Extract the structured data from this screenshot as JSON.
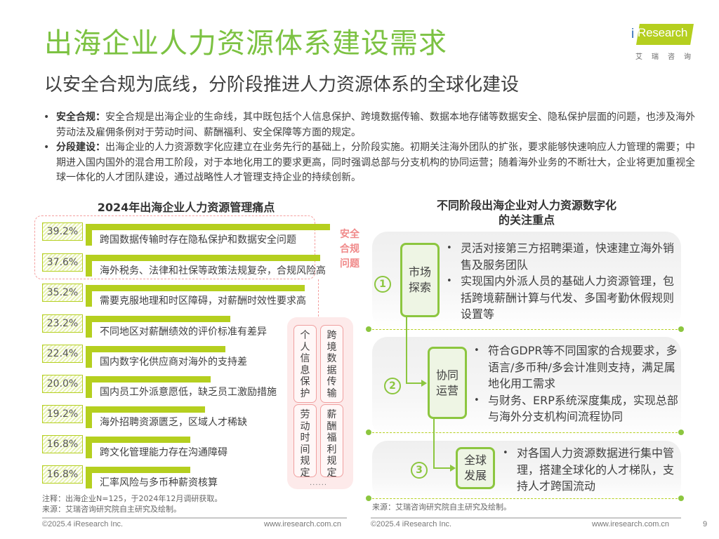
{
  "header": {
    "title": "出海企业人力资源体系建设需求",
    "subtitle": "以安全合规为底线，分阶段推进人力资源体系的全球化建设",
    "logo": {
      "brand": "Research",
      "brand_prefix": "i",
      "cn": "艾瑞咨询"
    }
  },
  "bullets": [
    {
      "bold": "安全合规：",
      "text": "安全合规是出海企业的生命线，其中既包括个人信息保护、跨境数据传输、数据本地存储等数据安全、隐私保护层面的问题，也涉及海外劳动法及雇佣条例对于劳动时间、薪酬福利、安全保障等方面的规定。"
    },
    {
      "bold": "分段建设：",
      "text": "出海企业的人力资源数字化应建立在业务先行的基础上，分阶段实施。初期关注海外团队的扩张，要求能够快速响应人力管理的需要；中期进入国内国外的混合用工阶段，对于本地化用工的要求更高，同时强调总部与分支机构的协同运营；随着海外业务的不断壮大，企业将更加重视全球一体化的人才团队建设，通过战略性人才管理支持企业的持续创新。"
    }
  ],
  "chart_data": {
    "type": "bar",
    "title": "2024年出海企业人力资源管理痛点",
    "orientation": "horizontal",
    "categories": [
      "跨国数据传输时存在隐私保护和数据安全问题",
      "海外税务、法律和社保等政策法规复杂，合规风险高",
      "需要克服地理和时区障碍，对薪酬时效性要求高",
      "不同地区对薪酬绩效的评价标准有差异",
      "国内数字化供应商对海外的支持差",
      "国内员工外派意愿低，缺乏员工激励措施",
      "海外招聘资源匮乏，区域人才稀缺",
      "跨文化管理能力存在沟通障碍",
      "汇率风险与多币种薪资核算"
    ],
    "values": [
      39.2,
      37.6,
      35.2,
      23.2,
      22.4,
      20.0,
      19.2,
      16.8,
      16.8
    ],
    "value_labels": [
      "39.2%",
      "37.6%",
      "35.2%",
      "23.2%",
      "22.4%",
      "20.0%",
      "19.2%",
      "16.8%",
      "16.8%"
    ],
    "unit": "%",
    "xlabel": "",
    "ylabel": "",
    "annotation": "安全合规问题（前两项）",
    "colors": {
      "bar": "#b5cf1f",
      "highlight": "#f08a8a"
    }
  },
  "left_panel": {
    "title": "2024年出海企业人力资源管理痛点",
    "compliance_label": "安全合规问题",
    "tags": [
      "个人信息保护",
      "跨境数据传输",
      "劳动时间规定",
      "薪酬福利规定"
    ],
    "tags_more": "......",
    "note": "注释：出海企业N=125，于2024年12月调研获取。",
    "source": "来源：艾瑞咨询研究院自主研究及绘制。"
  },
  "right_panel": {
    "title_line1": "不同阶段出海企业对人力资源数字化",
    "title_line2": "的关注重点",
    "stages": [
      {
        "num": "①",
        "name_1": "市场",
        "name_2": "探索",
        "points": [
          "灵活对接第三方招聘渠道，快速建立海外销售及服务团队",
          "实现国内外派人员的基础人力资源管理，包括跨境薪酬计算与代发、多国考勤休假规则设置等"
        ]
      },
      {
        "num": "②",
        "name_1": "协同",
        "name_2": "运营",
        "points": [
          "符合GDPR等不同国家的合规要求，多语言/多币种/多会计准则支持，满足属地化用工需求",
          "与财务、ERP系统深度集成，实现总部与海外分支机构间流程协同"
        ]
      },
      {
        "num": "③",
        "name_1": "全球",
        "name_2": "发展",
        "points": [
          "对各国人力资源数据进行集中管理，搭建全球化的人才梯队，支持人才跨国流动"
        ]
      }
    ],
    "source": "来源：艾瑞咨询研究院自主研究及绘制。"
  },
  "footer": {
    "copyright_left": "©2025.4 iResearch Inc.",
    "url_left": "www.iresearch.com.cn",
    "copyright_right": "©2025.4 iResearch Inc.",
    "url_right": "www.iresearch.com.cn",
    "page": "9"
  },
  "colors": {
    "accent": "#7cc242",
    "bar": "#b5cf1f",
    "pink": "#f08a8a",
    "text": "#404040"
  }
}
